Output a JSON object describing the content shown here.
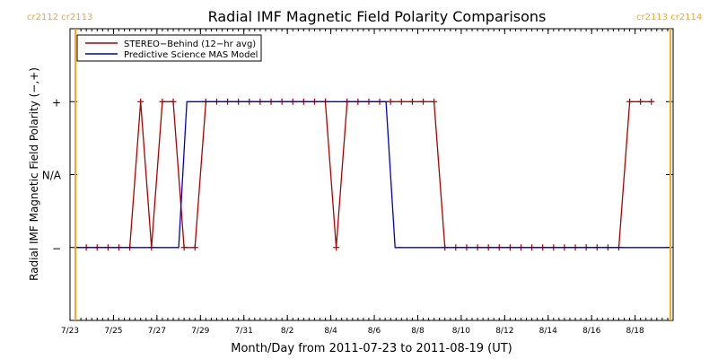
{
  "colors": {
    "stereo": "#b00000",
    "model": "#0000c8",
    "cr_marker": "#f5a623",
    "axes": "#000000",
    "background": "#ffffff"
  },
  "chart_data": {
    "type": "line",
    "title": "Radial IMF Magnetic Field Polarity Comparisons",
    "xlabel": "Month/Day from 2011-07-23 to 2011-08-19 (UT)",
    "ylabel": "Radial IMF Magnetic Field Polarity (−,+)",
    "xlim": [
      "2011-07-23",
      "2011-08-19T18:00"
    ],
    "x_tick_labels": [
      "7/23",
      "7/25",
      "7/27",
      "7/29",
      "7/31",
      "8/2",
      "8/4",
      "8/6",
      "8/8",
      "8/10",
      "8/12",
      "8/14",
      "8/16",
      "8/18"
    ],
    "x_tick_dates": [
      "2011-07-23",
      "2011-07-25",
      "2011-07-27",
      "2011-07-29",
      "2011-07-31",
      "2011-08-02",
      "2011-08-04",
      "2011-08-06",
      "2011-08-08",
      "2011-08-10",
      "2011-08-12",
      "2011-08-14",
      "2011-08-16",
      "2011-08-18"
    ],
    "y_categories": [
      "−",
      "N/A",
      "+"
    ],
    "ylim": [
      -2,
      2
    ],
    "legend": {
      "placement": "top-left",
      "entries": [
        "STEREO−Behind (12−hr avg)",
        "Predictive Science MAS Model"
      ]
    },
    "cr_boundaries": [
      {
        "date": "2011-07-23T06:00",
        "labels": [
          "cr2112",
          "cr2113"
        ],
        "label_side": "top-left"
      },
      {
        "date": "2011-08-19T15:00",
        "labels": [
          "cr2113",
          "cr2114"
        ],
        "label_side": "top-right"
      }
    ],
    "series": [
      {
        "name": "STEREO−Behind (12−hr avg)",
        "marker": "+",
        "points": [
          [
            "2011-07-23T06:00",
            -1
          ],
          [
            "2011-07-23T18:00",
            -1
          ],
          [
            "2011-07-24T06:00",
            -1
          ],
          [
            "2011-07-24T18:00",
            -1
          ],
          [
            "2011-07-25T06:00",
            -1
          ],
          [
            "2011-07-25T18:00",
            -1
          ],
          [
            "2011-07-26T06:00",
            1
          ],
          [
            "2011-07-26T18:00",
            -1
          ],
          [
            "2011-07-27T06:00",
            1
          ],
          [
            "2011-07-27T18:00",
            1
          ],
          [
            "2011-07-28T06:00",
            -1
          ],
          [
            "2011-07-28T18:00",
            -1
          ],
          [
            "2011-07-29T06:00",
            1
          ],
          [
            "2011-07-29T18:00",
            1
          ],
          [
            "2011-07-30T06:00",
            1
          ],
          [
            "2011-07-30T18:00",
            1
          ],
          [
            "2011-07-31T06:00",
            1
          ],
          [
            "2011-07-31T18:00",
            1
          ],
          [
            "2011-08-01T06:00",
            1
          ],
          [
            "2011-08-01T18:00",
            1
          ],
          [
            "2011-08-02T06:00",
            1
          ],
          [
            "2011-08-02T18:00",
            1
          ],
          [
            "2011-08-03T06:00",
            1
          ],
          [
            "2011-08-03T18:00",
            1
          ],
          [
            "2011-08-04T06:00",
            -1
          ],
          [
            "2011-08-04T18:00",
            1
          ],
          [
            "2011-08-05T06:00",
            1
          ],
          [
            "2011-08-05T18:00",
            1
          ],
          [
            "2011-08-06T06:00",
            1
          ],
          [
            "2011-08-06T18:00",
            1
          ],
          [
            "2011-08-07T06:00",
            1
          ],
          [
            "2011-08-07T18:00",
            1
          ],
          [
            "2011-08-08T06:00",
            1
          ],
          [
            "2011-08-08T18:00",
            1
          ],
          [
            "2011-08-09T06:00",
            -1
          ],
          [
            "2011-08-09T18:00",
            -1
          ],
          [
            "2011-08-10T06:00",
            -1
          ],
          [
            "2011-08-10T18:00",
            -1
          ],
          [
            "2011-08-11T06:00",
            -1
          ],
          [
            "2011-08-11T18:00",
            -1
          ],
          [
            "2011-08-12T06:00",
            -1
          ],
          [
            "2011-08-12T18:00",
            -1
          ],
          [
            "2011-08-13T06:00",
            -1
          ],
          [
            "2011-08-13T18:00",
            -1
          ],
          [
            "2011-08-14T06:00",
            -1
          ],
          [
            "2011-08-14T18:00",
            -1
          ],
          [
            "2011-08-15T06:00",
            -1
          ],
          [
            "2011-08-15T18:00",
            -1
          ],
          [
            "2011-08-16T06:00",
            -1
          ],
          [
            "2011-08-16T18:00",
            -1
          ],
          [
            "2011-08-17T06:00",
            -1
          ],
          [
            "2011-08-17T18:00",
            1
          ],
          [
            "2011-08-18T06:00",
            1
          ],
          [
            "2011-08-18T18:00",
            1
          ]
        ]
      },
      {
        "name": "Predictive Science MAS Model",
        "marker": "none",
        "points": [
          [
            "2011-07-23T06:00",
            -1
          ],
          [
            "2011-07-28T00:00",
            -1
          ],
          [
            "2011-07-28T09:00",
            1
          ],
          [
            "2011-08-06T13:00",
            1
          ],
          [
            "2011-08-06T23:00",
            -1
          ],
          [
            "2011-08-19T15:00",
            -1
          ]
        ]
      }
    ]
  }
}
